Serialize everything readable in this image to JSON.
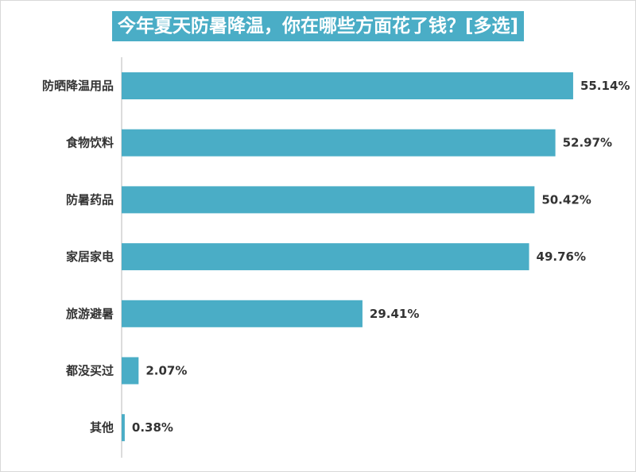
{
  "chart_data": {
    "type": "bar",
    "orientation": "horizontal",
    "title": "今年夏天防暑降温，你在哪些方面花了钱？[多选]",
    "categories": [
      "防晒降温用品",
      "食物饮料",
      "防暑药品",
      "家居家电",
      "旅游避暑",
      "都没买过",
      "其他"
    ],
    "values": [
      55.14,
      52.97,
      50.42,
      49.76,
      29.41,
      2.07,
      0.38
    ],
    "value_labels": [
      "55.14%",
      "52.97%",
      "50.42%",
      "49.76%",
      "29.41%",
      "2.07%",
      "0.38%"
    ],
    "xlim": [
      0,
      60
    ],
    "xlabel": "",
    "ylabel": "",
    "grid": false,
    "bar_color": "#4aadc6",
    "title_background": "#4aadc6"
  }
}
